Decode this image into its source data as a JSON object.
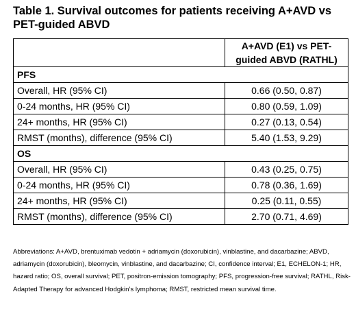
{
  "title": "Table 1. Survival outcomes for patients receiving A+AVD vs PET-guided ABVD",
  "table": {
    "header": [
      "",
      "A+AVD (E1) vs PET-guided ABVD (RATHL)"
    ],
    "sections": [
      {
        "name": "PFS",
        "rows": [
          {
            "label": "Overall, HR (95% CI)",
            "value": "0.66 (0.50, 0.87)"
          },
          {
            "label": "0-24 months, HR (95% CI)",
            "value": "0.80 (0.59, 1.09)"
          },
          {
            "label": "24+ months, HR (95% CI)",
            "value": "0.27 (0.13, 0.54)"
          },
          {
            "label": "RMST (months), difference (95% CI)",
            "value": "5.40 (1.53, 9.29)"
          }
        ]
      },
      {
        "name": "OS",
        "rows": [
          {
            "label": "Overall, HR (95% CI)",
            "value": "0.43 (0.25, 0.75)"
          },
          {
            "label": "0-24 months, HR (95% CI)",
            "value": "0.78 (0.36, 1.69)"
          },
          {
            "label": "24+ months, HR (95% CI)",
            "value": "0.25 (0.11, 0.55)"
          },
          {
            "label": "RMST (months), difference (95% CI)",
            "value": "2.70 (0.71, 4.69)"
          }
        ]
      }
    ]
  },
  "footnote": "Abbreviations: A+AVD, brentuximab vedotin + adriamycin (doxorubicin), vinblastine, and dacarbazine; ABVD, adriamycin (doxorubicin), bleomycin, vinblastine, and dacarbazine; CI, confidence interval; E1, ECHELON-1; HR, hazard ratio; OS, overall survival; PET, positron-emission tomography; PFS, progression-free survival; RATHL, Risk-Adapted Therapy for advanced Hodgkin’s lymphoma; RMST, restricted mean survival time."
}
